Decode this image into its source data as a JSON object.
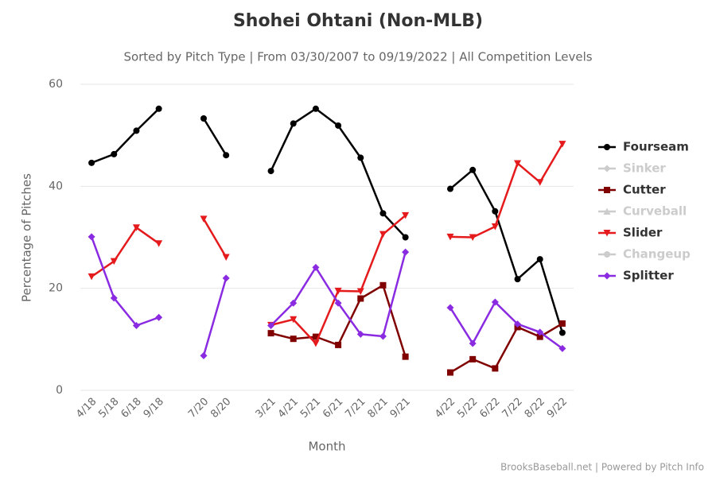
{
  "chart_data": {
    "type": "line",
    "title": "Shohei Ohtani (Non-MLB)",
    "subtitle": "Sorted by Pitch Type | From 03/30/2007 to 09/19/2022 | All Competition Levels",
    "x_label": "Month",
    "y_label": "Percentage of Pitches",
    "credit": "BrooksBaseball.net | Powered by Pitch Info",
    "categories": [
      "4/18",
      "5/18",
      "6/18",
      "9/18",
      null,
      "7/20",
      "8/20",
      null,
      "3/21",
      "4/21",
      "5/21",
      "6/21",
      "7/21",
      "8/21",
      "9/21",
      null,
      "4/22",
      "5/22",
      "6/22",
      "7/22",
      "8/22",
      "9/22"
    ],
    "ylim": [
      0,
      60
    ],
    "yticks": [
      0,
      20,
      40,
      60
    ],
    "grid": true,
    "legend": "right",
    "series": [
      {
        "name": "Fourseam",
        "color": "#000000",
        "marker": "circle",
        "visible": true,
        "values": [
          44.6,
          46.3,
          50.9,
          55.2,
          null,
          53.3,
          46.1,
          null,
          43.0,
          52.3,
          55.2,
          51.9,
          45.6,
          34.7,
          30.0,
          null,
          39.5,
          43.2,
          35.1,
          21.8,
          25.7,
          11.3
        ]
      },
      {
        "name": "Sinker",
        "color": "#cccccc",
        "marker": "diamond",
        "visible": false,
        "values": [
          null,
          null,
          null,
          null,
          null,
          null,
          null,
          null,
          null,
          null,
          null,
          null,
          null,
          null,
          null,
          null,
          null,
          null,
          null,
          null,
          null,
          null
        ]
      },
      {
        "name": "Cutter",
        "color": "#800000",
        "marker": "square",
        "visible": true,
        "values": [
          null,
          null,
          null,
          null,
          null,
          null,
          null,
          null,
          11.2,
          10.1,
          10.5,
          8.9,
          18.0,
          20.6,
          6.6,
          null,
          3.5,
          6.1,
          4.3,
          12.4,
          10.5,
          13.1
        ]
      },
      {
        "name": "Curveball",
        "color": "#cccccc",
        "marker": "triangle",
        "visible": false,
        "values": [
          null,
          null,
          null,
          null,
          null,
          null,
          null,
          null,
          null,
          null,
          null,
          null,
          null,
          null,
          null,
          null,
          null,
          null,
          null,
          null,
          null,
          null
        ]
      },
      {
        "name": "Slider",
        "color": "#e41a1c",
        "marker": "triangle-down",
        "visible": true,
        "values": [
          22.3,
          25.3,
          31.9,
          28.8,
          null,
          33.6,
          26.1,
          null,
          12.8,
          13.9,
          9.2,
          19.5,
          19.4,
          30.6,
          34.3,
          null,
          30.1,
          30.0,
          32.1,
          44.5,
          40.8,
          48.3
        ]
      },
      {
        "name": "Changeup",
        "color": "#cccccc",
        "marker": "circle",
        "visible": false,
        "values": [
          null,
          null,
          null,
          null,
          null,
          null,
          null,
          null,
          null,
          null,
          null,
          null,
          null,
          null,
          null,
          null,
          null,
          null,
          null,
          null,
          null,
          null
        ]
      },
      {
        "name": "Splitter",
        "color": "#8a2be2",
        "marker": "diamond",
        "visible": true,
        "values": [
          30.1,
          18.1,
          12.7,
          14.3,
          null,
          6.8,
          22.0,
          null,
          12.7,
          17.1,
          24.1,
          17.1,
          11.0,
          10.6,
          27.1,
          null,
          16.2,
          9.2,
          17.3,
          13.0,
          11.4,
          8.2
        ]
      }
    ]
  }
}
